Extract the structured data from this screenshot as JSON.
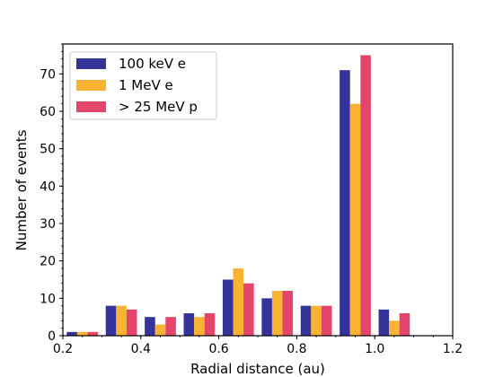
{
  "chart_data": {
    "type": "bar",
    "xlabel": "Radial distance (au)",
    "ylabel": "Number of events",
    "xlim": [
      0.2,
      1.2
    ],
    "ylim": [
      0,
      78
    ],
    "xticks": [
      0.2,
      0.4,
      0.6,
      0.8,
      1.0,
      1.2
    ],
    "xtick_labels": [
      "0.2",
      "0.4",
      "0.6",
      "0.8",
      "1.0",
      "1.2"
    ],
    "yticks": [
      0,
      10,
      20,
      30,
      40,
      50,
      60,
      70
    ],
    "ytick_labels": [
      "0",
      "10",
      "20",
      "30",
      "40",
      "50",
      "60",
      "70"
    ],
    "bin_edges": [
      0.2,
      0.3,
      0.4,
      0.5,
      0.6,
      0.7,
      0.8,
      0.9,
      1.0,
      1.1,
      1.2
    ],
    "grid": false,
    "legend_position": "top-left",
    "series": [
      {
        "name": "100 keV e",
        "color": "#333399",
        "values": [
          1,
          8,
          5,
          6,
          15,
          10,
          8,
          71,
          7,
          0
        ]
      },
      {
        "name": "1 MeV e",
        "color": "#f9b232",
        "values": [
          1,
          8,
          3,
          5,
          18,
          12,
          8,
          62,
          4,
          0
        ]
      },
      {
        "name": "> 25 MeV p",
        "color": "#e4456a",
        "values": [
          1,
          7,
          5,
          6,
          14,
          12,
          8,
          75,
          6,
          0
        ]
      }
    ]
  }
}
